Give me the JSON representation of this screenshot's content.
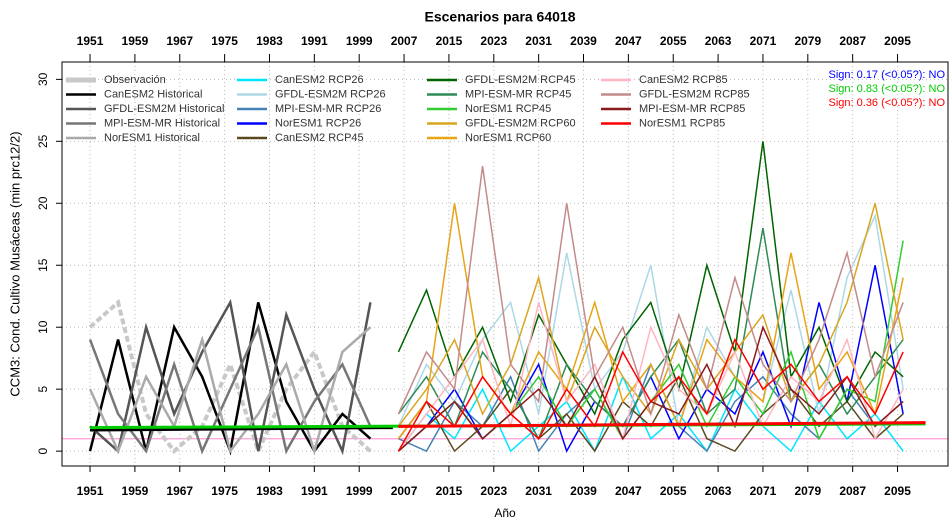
{
  "chart_data": {
    "type": "line",
    "title": "Escenarios  para 64018",
    "x_label": "Año",
    "y_label": "CCM3: Cond. Cultivo Musáceas (min prc12/2)",
    "xlim": [
      1946,
      2104
    ],
    "ylim": [
      -1.2,
      31.4
    ],
    "xticks": [
      1951,
      1959,
      1967,
      1975,
      1983,
      1991,
      1999,
      2007,
      2015,
      2023,
      2031,
      2039,
      2047,
      2055,
      2063,
      2071,
      2079,
      2087,
      2095
    ],
    "yticks": [
      0,
      5,
      10,
      15,
      20,
      25,
      30
    ],
    "grid": true,
    "legend": "top-left",
    "reference_line": {
      "value": 1,
      "color": "#ff9ed8"
    },
    "series": [
      {
        "name": "Observación",
        "color": "#c8c8c8",
        "x": [
          1951,
          1956,
          1961,
          1966,
          1971,
          1976,
          1981,
          1986,
          1991,
          1996,
          2001
        ],
        "values": [
          10,
          12,
          3,
          0,
          2,
          7,
          0,
          5,
          8,
          2,
          0
        ]
      },
      {
        "name": "CanESM2 Historical",
        "color": "#000000",
        "x": [
          1951,
          1956,
          1961,
          1966,
          1971,
          1976,
          1981,
          1986,
          1991,
          1996,
          2001
        ],
        "values": [
          0,
          9,
          0,
          10,
          6,
          0,
          12,
          4,
          0,
          3,
          1
        ]
      },
      {
        "name": "GFDL-ESM2M Historical",
        "color": "#555555",
        "x": [
          1951,
          1956,
          1961,
          1966,
          1971,
          1976,
          1981,
          1986,
          1991,
          1996,
          2001
        ],
        "values": [
          2,
          0,
          10,
          3,
          8,
          12,
          0,
          11,
          5,
          0,
          12
        ]
      },
      {
        "name": "MPI-ESM-MR Historical",
        "color": "#777777",
        "x": [
          1951,
          1956,
          1961,
          1966,
          1971,
          1976,
          1981,
          1986,
          1991,
          1996,
          2001
        ],
        "values": [
          9,
          3,
          0,
          7,
          0,
          5,
          10,
          0,
          4,
          7,
          2
        ]
      },
      {
        "name": "NorESM1 Historical",
        "color": "#aaaaaa",
        "x": [
          1951,
          1956,
          1961,
          1966,
          1971,
          1976,
          1981,
          1986,
          1991,
          1996,
          2001
        ],
        "values": [
          5,
          0,
          6,
          2,
          9,
          0,
          3,
          7,
          0,
          8,
          10
        ]
      },
      {
        "name": "CanESM2 RCP26",
        "color": "#00e5ff",
        "x": [
          2006,
          2011,
          2016,
          2021,
          2026,
          2031,
          2036,
          2041,
          2046,
          2051,
          2056,
          2061,
          2066,
          2071,
          2076,
          2081,
          2086,
          2091,
          2096
        ],
        "values": [
          0,
          3,
          1,
          5,
          0,
          2,
          4,
          0,
          6,
          1,
          3,
          0,
          5,
          2,
          0,
          4,
          1,
          3,
          0
        ]
      },
      {
        "name": "GFDL-ESM2M RCP26",
        "color": "#add8e6",
        "x": [
          2006,
          2011,
          2016,
          2021,
          2026,
          2031,
          2036,
          2041,
          2046,
          2051,
          2056,
          2061,
          2066,
          2071,
          2076,
          2081,
          2086,
          2091,
          2096
        ],
        "values": [
          2,
          7,
          4,
          9,
          12,
          3,
          16,
          5,
          8,
          15,
          2,
          10,
          6,
          4,
          13,
          3,
          14,
          19,
          5
        ]
      },
      {
        "name": "MPI-ESM-MR RCP26",
        "color": "#4682b4",
        "x": [
          2006,
          2011,
          2016,
          2021,
          2026,
          2031,
          2036,
          2041,
          2046,
          2051,
          2056,
          2061,
          2066,
          2071,
          2076,
          2081,
          2086,
          2091,
          2096
        ],
        "values": [
          1,
          0,
          4,
          2,
          6,
          0,
          3,
          5,
          1,
          7,
          2,
          0,
          4,
          6,
          3,
          1,
          5,
          2,
          4
        ]
      },
      {
        "name": "NorESM1 RCP26",
        "color": "#0000ff",
        "x": [
          2006,
          2011,
          2016,
          2021,
          2026,
          2031,
          2036,
          2041,
          2046,
          2051,
          2056,
          2061,
          2066,
          2071,
          2076,
          2081,
          2086,
          2091,
          2096
        ],
        "values": [
          0,
          2,
          5,
          1,
          3,
          7,
          0,
          4,
          2,
          6,
          1,
          5,
          3,
          8,
          2,
          12,
          4,
          15,
          3
        ]
      },
      {
        "name": "CanESM2 RCP45",
        "color": "#5c4a1e",
        "x": [
          2006,
          2011,
          2016,
          2021,
          2026,
          2031,
          2036,
          2041,
          2046,
          2051,
          2056,
          2061,
          2066,
          2071,
          2076,
          2081,
          2086,
          2091,
          2096
        ],
        "values": [
          1,
          4,
          0,
          2,
          5,
          1,
          3,
          0,
          4,
          2,
          6,
          1,
          0,
          3,
          5,
          2,
          4,
          1,
          3
        ]
      },
      {
        "name": "GFDL-ESM2M RCP45",
        "color": "#006400",
        "x": [
          2006,
          2011,
          2016,
          2021,
          2026,
          2031,
          2036,
          2041,
          2046,
          2051,
          2056,
          2061,
          2066,
          2071,
          2076,
          2081,
          2086,
          2091,
          2096
        ],
        "values": [
          8,
          13,
          6,
          10,
          4,
          11,
          7,
          3,
          9,
          12,
          5,
          15,
          8,
          25,
          6,
          10,
          4,
          8,
          6
        ]
      },
      {
        "name": "MPI-ESM-MR RCP45",
        "color": "#2e8b57",
        "x": [
          2006,
          2011,
          2016,
          2021,
          2026,
          2031,
          2036,
          2041,
          2046,
          2051,
          2056,
          2061,
          2066,
          2071,
          2076,
          2081,
          2086,
          2091,
          2096
        ],
        "values": [
          3,
          6,
          2,
          8,
          5,
          1,
          7,
          4,
          2,
          6,
          9,
          3,
          5,
          18,
          4,
          7,
          3,
          6,
          9
        ]
      },
      {
        "name": "NorESM1 RCP45",
        "color": "#32cd32",
        "x": [
          2006,
          2011,
          2016,
          2021,
          2026,
          2031,
          2036,
          2041,
          2046,
          2051,
          2056,
          2061,
          2066,
          2071,
          2076,
          2081,
          2086,
          2091,
          2096
        ],
        "values": [
          0,
          2,
          4,
          1,
          3,
          6,
          2,
          5,
          1,
          4,
          7,
          2,
          6,
          3,
          8,
          1,
          5,
          4,
          17
        ]
      },
      {
        "name": "GFDL-ESM2M RCP60",
        "color": "#daa520",
        "x": [
          2006,
          2011,
          2016,
          2021,
          2026,
          2031,
          2036,
          2041,
          2046,
          2051,
          2056,
          2061,
          2066,
          2071,
          2076,
          2081,
          2086,
          2091,
          2096
        ],
        "values": [
          2,
          5,
          9,
          3,
          7,
          14,
          4,
          10,
          6,
          3,
          9,
          5,
          8,
          11,
          4,
          7,
          12,
          20,
          9
        ]
      },
      {
        "name": "NorESM1 RCP60",
        "color": "#e8a317",
        "x": [
          2006,
          2011,
          2016,
          2021,
          2026,
          2031,
          2036,
          2041,
          2046,
          2051,
          2056,
          2061,
          2066,
          2071,
          2076,
          2081,
          2086,
          2091,
          2096
        ],
        "values": [
          1,
          4,
          20,
          6,
          3,
          8,
          5,
          12,
          4,
          7,
          2,
          9,
          6,
          4,
          16,
          5,
          8,
          3,
          14
        ]
      },
      {
        "name": "CanESM2 RCP85",
        "color": "#ffb6c1",
        "x": [
          2006,
          2011,
          2016,
          2021,
          2026,
          2031,
          2036,
          2041,
          2046,
          2051,
          2056,
          2061,
          2066,
          2071,
          2076,
          2081,
          2086,
          2091,
          2096
        ],
        "values": [
          0,
          3,
          6,
          9,
          2,
          12,
          4,
          7,
          1,
          10,
          5,
          3,
          8,
          2,
          6,
          4,
          9,
          1,
          5
        ]
      },
      {
        "name": "GFDL-ESM2M RCP85",
        "color": "#c48b8b",
        "x": [
          2006,
          2011,
          2016,
          2021,
          2026,
          2031,
          2036,
          2041,
          2046,
          2051,
          2056,
          2061,
          2066,
          2071,
          2076,
          2081,
          2086,
          2091,
          2096
        ],
        "values": [
          3,
          8,
          5,
          23,
          7,
          4,
          20,
          6,
          10,
          3,
          11,
          5,
          14,
          7,
          4,
          9,
          16,
          6,
          12
        ]
      },
      {
        "name": "MPI-ESM-MR RCP85",
        "color": "#8b1a1a",
        "x": [
          2006,
          2011,
          2016,
          2021,
          2026,
          2031,
          2036,
          2041,
          2046,
          2051,
          2056,
          2061,
          2066,
          2071,
          2076,
          2081,
          2086,
          2091,
          2096
        ],
        "values": [
          0,
          2,
          4,
          1,
          3,
          5,
          2,
          6,
          1,
          4,
          3,
          7,
          2,
          10,
          5,
          3,
          6,
          2,
          4
        ]
      },
      {
        "name": "NorESM1 RCP85",
        "color": "#ff0000",
        "x": [
          2006,
          2011,
          2016,
          2021,
          2026,
          2031,
          2036,
          2041,
          2046,
          2051,
          2056,
          2061,
          2066,
          2071,
          2076,
          2081,
          2086,
          2091,
          2096
        ],
        "values": [
          0,
          4,
          2,
          6,
          3,
          1,
          5,
          2,
          8,
          4,
          6,
          3,
          9,
          5,
          7,
          4,
          6,
          3,
          8
        ]
      }
    ],
    "trends": [
      {
        "color": "#000000",
        "x": [
          1951,
          2005
        ],
        "values": [
          1.7,
          1.9
        ]
      },
      {
        "color": "#00cc00",
        "x": [
          1951,
          2100
        ],
        "values": [
          1.9,
          2.2
        ]
      },
      {
        "color": "#ff0000",
        "x": [
          2006,
          2100
        ],
        "values": [
          2.0,
          2.3
        ]
      }
    ],
    "annotations": [
      {
        "text": "Sign: 0.17  (<0.05?): NO",
        "color": "#0000ff"
      },
      {
        "text": "Sign: 0.83  (<0.05?): NO",
        "color": "#00cc00"
      },
      {
        "text": "Sign: 0.36  (<0.05?): NO",
        "color": "#ff0000"
      }
    ]
  }
}
